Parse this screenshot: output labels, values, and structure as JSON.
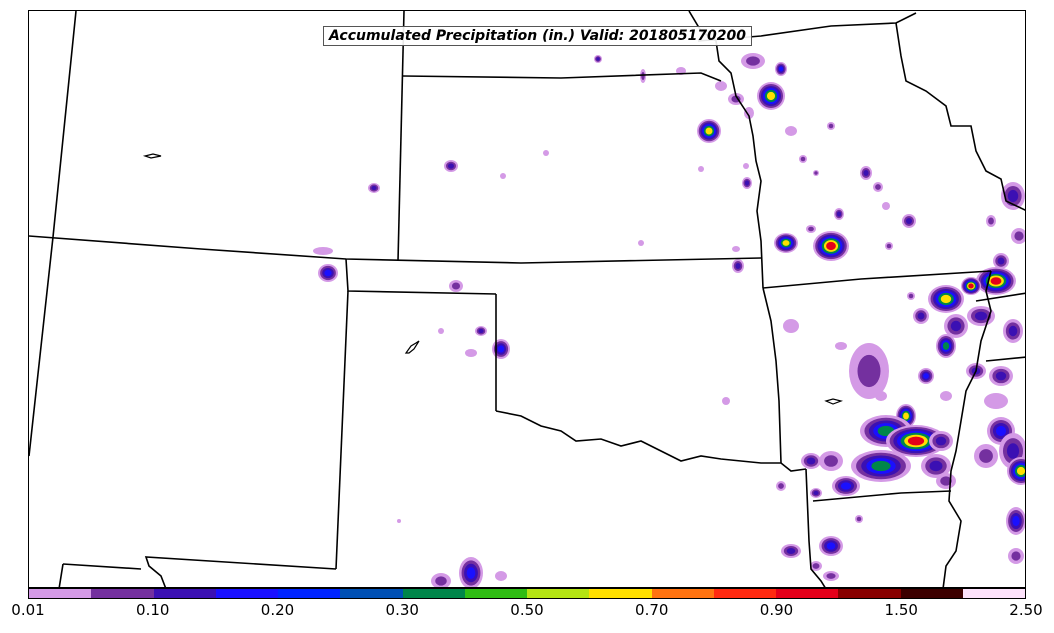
{
  "title": "Accumulated Precipitation (in.) Valid: 201805170200",
  "colorbar": {
    "colors": [
      "#d49ae6",
      "#74309f",
      "#3b10b3",
      "#1a10ff",
      "#0024ff",
      "#0050b4",
      "#00864a",
      "#2fbd13",
      "#b4e413",
      "#ffe000",
      "#ff7310",
      "#ff2a10",
      "#e4001a",
      "#880000",
      "#3c0000",
      "#fde2fb"
    ],
    "tick_labels": [
      "0.01",
      "0.10",
      "0.20",
      "0.30",
      "0.50",
      "0.70",
      "0.90",
      "1.50",
      "2.50"
    ]
  },
  "precip_levels": {
    "light": "#d49ae6",
    "low": "#74309f",
    "moderate": "#3b10b3",
    "heavy": "#1a10ff",
    "green": "#00864a",
    "yellow": "#ffe000",
    "red": "#e4001a",
    "darkred": "#880000"
  }
}
